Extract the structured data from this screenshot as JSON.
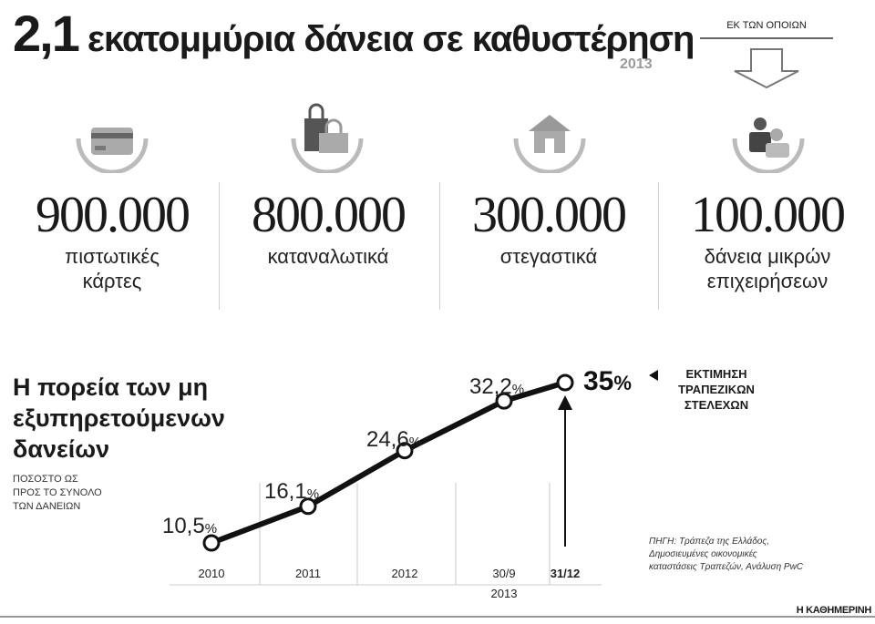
{
  "header": {
    "big_number": "2,1",
    "title_rest": "εκατομμύρια δάνεια σε καθυστέρηση",
    "year": "2013",
    "ek_label": "ΕΚ ΤΩΝ ΟΠΟΙΩΝ"
  },
  "stats": [
    {
      "number": "900.000",
      "label_line1": "πιστωτικές",
      "label_line2": "κάρτες",
      "icon": "credit-card-icon"
    },
    {
      "number": "800.000",
      "label_line1": "καταναλωτικά",
      "label_line2": "",
      "icon": "shopping-bag-icon"
    },
    {
      "number": "300.000",
      "label_line1": "στεγαστικά",
      "label_line2": "",
      "icon": "house-icon"
    },
    {
      "number": "100.000",
      "label_line1": "δάνεια μικρών",
      "label_line2": "επιχειρήσεων",
      "icon": "business-people-icon"
    }
  ],
  "chart_data": {
    "type": "line",
    "title": "Η πορεία των μη εξυπηρετούμενων δανείων",
    "subtitle_line1": "ΠΟΣΟΣΤΟ ΩΣ",
    "subtitle_line2": "ΠΡΟΣ ΤΟ ΣΥΝΟΛΟ",
    "subtitle_line3": "ΤΩΝ ΔΑΝΕΙΩΝ",
    "categories": [
      "2010",
      "2011",
      "2012",
      "30/9",
      "31/12"
    ],
    "category_sub": "2013",
    "values": [
      10.5,
      16.1,
      24.6,
      32.2,
      35
    ],
    "value_labels": [
      "10,5",
      "16,1",
      "24,6",
      "32,2",
      "35"
    ],
    "unit": "%",
    "estimate_label_line1": "ΕΚΤΙΜΗΣΗ",
    "estimate_label_line2": "ΤΡΑΠΕΖΙΚΩΝ",
    "estimate_label_line3": "ΣΤΕΛΕΧΩΝ",
    "source_line1": "ΠΗΓΗ: Τράπεζα της Ελλάδος,",
    "source_line2": "Δημοσιευμένες οικονομικές",
    "source_line3": "καταστάσεις Τραπεζών, Ανάλυση PwC"
  },
  "footer": {
    "brand": "Η ΚΑΘΗΜΕΡΙΝΗ"
  }
}
